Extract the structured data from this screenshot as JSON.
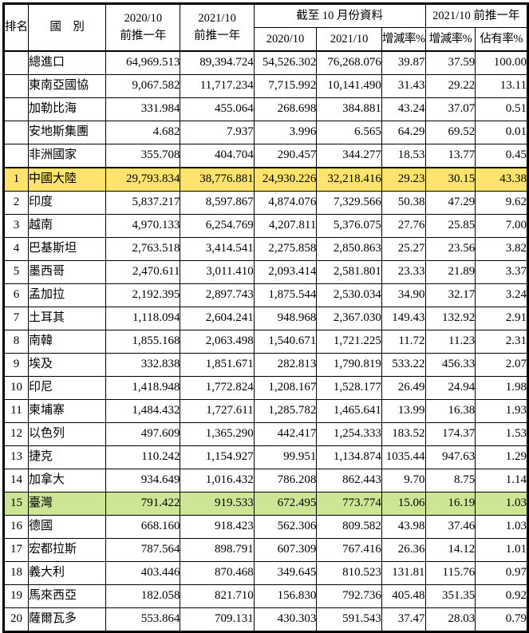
{
  "table": {
    "colors": {
      "border": "#000000",
      "text": "#000000",
      "highlight_yellow": "#FFE36C",
      "highlight_green": "#CCE696"
    },
    "header": {
      "rank": "排名",
      "country": "國　別",
      "prev_2020": {
        "line1": "2020/10",
        "line2": "前推一年"
      },
      "prev_2021": {
        "line1": "2021/10",
        "line2": "前推一年"
      },
      "group_oct": "截至 10 月份資料",
      "oct_2020": "2020/10",
      "oct_2021": "2021/10",
      "oct_rate": "增減率%",
      "group_prev": "2021/10 前推一年",
      "prev_rate": "增減率%",
      "prev_share": "佔有率%"
    },
    "rows": [
      {
        "rank": "",
        "country": "總進口",
        "values": [
          "64,969.513",
          "89,394.724",
          "54,526.302",
          "76,268.076",
          "39.87",
          "37.59",
          "100.00"
        ],
        "highlight": ""
      },
      {
        "rank": "",
        "country": "東南亞國協",
        "values": [
          "9,067.582",
          "11,717.234",
          "7,715.992",
          "10,141.490",
          "31.43",
          "29.22",
          "13.11"
        ],
        "highlight": ""
      },
      {
        "rank": "",
        "country": "加勒比海",
        "values": [
          "331.984",
          "455.064",
          "268.698",
          "384.881",
          "43.24",
          "37.07",
          "0.51"
        ],
        "highlight": ""
      },
      {
        "rank": "",
        "country": "安地斯集團",
        "values": [
          "4.682",
          "7.937",
          "3.996",
          "6.565",
          "64.29",
          "69.52",
          "0.01"
        ],
        "highlight": ""
      },
      {
        "rank": "",
        "country": "非洲國家",
        "values": [
          "355.708",
          "404.704",
          "290.457",
          "344.277",
          "18.53",
          "13.77",
          "0.45"
        ],
        "highlight": ""
      },
      {
        "rank": "1",
        "country": "中國大陸",
        "values": [
          "29,793.834",
          "38,776.881",
          "24,930.226",
          "32,218.416",
          "29.23",
          "30.15",
          "43.38"
        ],
        "highlight": "yellow"
      },
      {
        "rank": "2",
        "country": "印度",
        "values": [
          "5,837.217",
          "8,597.867",
          "4,874.076",
          "7,329.566",
          "50.38",
          "47.29",
          "9.62"
        ],
        "highlight": ""
      },
      {
        "rank": "3",
        "country": "越南",
        "values": [
          "4,970.133",
          "6,254.769",
          "4,207.811",
          "5,376.075",
          "27.76",
          "25.85",
          "7.00"
        ],
        "highlight": ""
      },
      {
        "rank": "4",
        "country": "巴基斯坦",
        "values": [
          "2,763.518",
          "3,414.541",
          "2,275.858",
          "2,850.863",
          "25.27",
          "23.56",
          "3.82"
        ],
        "highlight": ""
      },
      {
        "rank": "5",
        "country": "墨西哥",
        "values": [
          "2,470.611",
          "3,011.410",
          "2,093.414",
          "2,581.801",
          "23.33",
          "21.89",
          "3.37"
        ],
        "highlight": ""
      },
      {
        "rank": "6",
        "country": "孟加拉",
        "values": [
          "2,192.395",
          "2,897.743",
          "1,875.544",
          "2,530.034",
          "34.90",
          "32.17",
          "3.24"
        ],
        "highlight": ""
      },
      {
        "rank": "7",
        "country": "土耳其",
        "values": [
          "1,118.094",
          "2,604.241",
          "948.968",
          "2,367.030",
          "149.43",
          "132.92",
          "2.91"
        ],
        "highlight": ""
      },
      {
        "rank": "8",
        "country": "南韓",
        "values": [
          "1,855.168",
          "2,063.498",
          "1,540.671",
          "1,721.225",
          "11.72",
          "11.23",
          "2.31"
        ],
        "highlight": ""
      },
      {
        "rank": "9",
        "country": "埃及",
        "values": [
          "332.838",
          "1,851.671",
          "282.813",
          "1,790.819",
          "533.22",
          "456.33",
          "2.07"
        ],
        "highlight": ""
      },
      {
        "rank": "10",
        "country": "印尼",
        "values": [
          "1,418.948",
          "1,772.824",
          "1,208.167",
          "1,528.177",
          "26.49",
          "24.94",
          "1.98"
        ],
        "highlight": ""
      },
      {
        "rank": "11",
        "country": "柬埔寨",
        "values": [
          "1,484.432",
          "1,727.611",
          "1,285.782",
          "1,465.641",
          "13.99",
          "16.38",
          "1.93"
        ],
        "highlight": ""
      },
      {
        "rank": "12",
        "country": "以色列",
        "values": [
          "497.609",
          "1,365.290",
          "442.417",
          "1,254.333",
          "183.52",
          "174.37",
          "1.53"
        ],
        "highlight": ""
      },
      {
        "rank": "13",
        "country": "捷克",
        "values": [
          "110.242",
          "1,154.927",
          "99.951",
          "1,134.874",
          "1035.44",
          "947.63",
          "1.29"
        ],
        "highlight": ""
      },
      {
        "rank": "14",
        "country": "加拿大",
        "values": [
          "934.649",
          "1,016.432",
          "786.208",
          "862.443",
          "9.70",
          "8.75",
          "1.14"
        ],
        "highlight": ""
      },
      {
        "rank": "15",
        "country": "臺灣",
        "values": [
          "791.422",
          "919.533",
          "672.495",
          "773.774",
          "15.06",
          "16.19",
          "1.03"
        ],
        "highlight": "green"
      },
      {
        "rank": "16",
        "country": "德國",
        "values": [
          "668.160",
          "918.423",
          "562.306",
          "809.582",
          "43.98",
          "37.46",
          "1.03"
        ],
        "highlight": ""
      },
      {
        "rank": "17",
        "country": "宏都拉斯",
        "values": [
          "787.564",
          "898.791",
          "607.309",
          "767.416",
          "26.36",
          "14.12",
          "1.01"
        ],
        "highlight": ""
      },
      {
        "rank": "18",
        "country": "義大利",
        "values": [
          "403.446",
          "870.468",
          "349.645",
          "810.523",
          "131.81",
          "115.76",
          "0.97"
        ],
        "highlight": ""
      },
      {
        "rank": "19",
        "country": "馬來西亞",
        "values": [
          "182.058",
          "821.710",
          "156.830",
          "792.736",
          "405.48",
          "351.35",
          "0.92"
        ],
        "highlight": ""
      },
      {
        "rank": "20",
        "country": "薩爾瓦多",
        "values": [
          "553.864",
          "709.131",
          "430.303",
          "591.543",
          "37.47",
          "28.03",
          "0.79"
        ],
        "highlight": ""
      }
    ]
  }
}
